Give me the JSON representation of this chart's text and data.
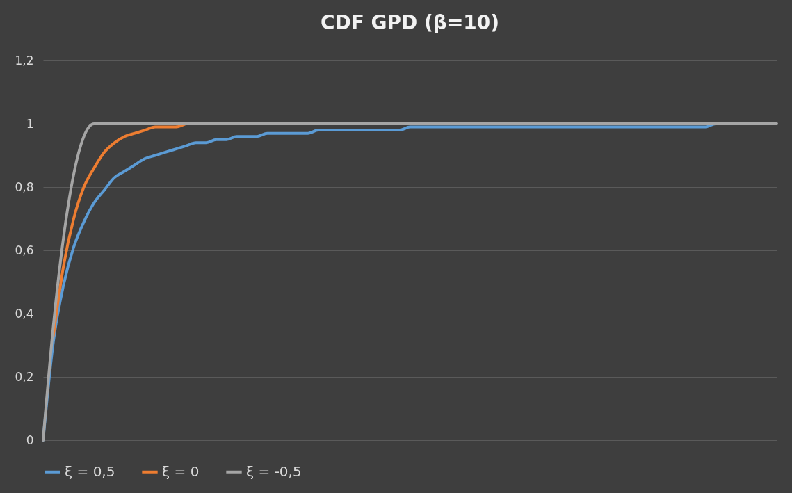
{
  "chart_data": {
    "type": "line",
    "title": "CDF GPD (β=10)",
    "categories": [
      null,
      null,
      null,
      null,
      null,
      null,
      null,
      null,
      null,
      null,
      null,
      null,
      null,
      null,
      null,
      null,
      null,
      null,
      null,
      null,
      null,
      null,
      null,
      null,
      null,
      null,
      null,
      null,
      null,
      null,
      null,
      null,
      null,
      null,
      null,
      null,
      null,
      null,
      null,
      null,
      null,
      null,
      null,
      null,
      null,
      null,
      null,
      null,
      null,
      null,
      null,
      null,
      null,
      null,
      null,
      null,
      null,
      null,
      null,
      null,
      null,
      null,
      null,
      null,
      null,
      null,
      null,
      null,
      null,
      null,
      null,
      null,
      null
    ],
    "series": [
      {
        "name": "ξ = 0,5",
        "color": "#5b9bd5",
        "values": [
          0,
          0.31,
          0.49,
          0.61,
          0.69,
          0.75,
          0.79,
          0.83,
          0.85,
          0.87,
          0.89,
          0.9,
          0.91,
          0.92,
          0.93,
          0.94,
          0.94,
          0.95,
          0.95,
          0.96,
          0.96,
          0.96,
          0.97,
          0.97,
          0.97,
          0.97,
          0.97,
          0.98,
          0.98,
          0.98,
          0.98,
          0.98,
          0.98,
          0.98,
          0.98,
          0.98,
          0.99,
          0.99,
          0.99,
          0.99,
          0.99,
          0.99,
          0.99,
          0.99,
          0.99,
          0.99,
          0.99,
          0.99,
          0.99,
          0.99,
          0.99,
          0.99,
          0.99,
          0.99,
          0.99,
          0.99,
          0.99,
          0.99,
          0.99,
          0.99,
          0.99,
          0.99,
          0.99,
          0.99,
          0.99,
          0.99,
          1,
          1,
          null,
          null,
          null,
          null,
          null
        ]
      },
      {
        "name": "ξ = 0",
        "color": "#ed7d31",
        "values": [
          null,
          0.33,
          0.55,
          0.7,
          0.8,
          0.86,
          0.91,
          0.94,
          0.96,
          0.97,
          0.98,
          0.99,
          0.99,
          0.99,
          1,
          null,
          null,
          null,
          null,
          null,
          null,
          null,
          null,
          null,
          null,
          null,
          null,
          null,
          null,
          null,
          null,
          null,
          null,
          null,
          null,
          null,
          null,
          null,
          null,
          null,
          null,
          null,
          null,
          null,
          null,
          null,
          null,
          null,
          null,
          null,
          null,
          null,
          null,
          null,
          null,
          null,
          null,
          null,
          null,
          null,
          null,
          null,
          null,
          null,
          null,
          null,
          null,
          null,
          null,
          null,
          null,
          null,
          null
        ]
      },
      {
        "name": "ξ = -0,5",
        "color": "#a5a5a5",
        "values": [
          0,
          0.36,
          0.64,
          0.84,
          0.96,
          1,
          1,
          1,
          1,
          1,
          1,
          1,
          1,
          1,
          1,
          1,
          1,
          1,
          1,
          1,
          1,
          1,
          1,
          1,
          1,
          1,
          1,
          1,
          1,
          1,
          1,
          1,
          1,
          1,
          1,
          1,
          1,
          1,
          1,
          1,
          1,
          1,
          1,
          1,
          1,
          1,
          1,
          1,
          1,
          1,
          1,
          1,
          1,
          1,
          1,
          1,
          1,
          1,
          1,
          1,
          1,
          1,
          1,
          1,
          1,
          1,
          1,
          1,
          1,
          1,
          1,
          1,
          1
        ]
      }
    ],
    "ylim": [
      0,
      1.2
    ],
    "yticks": [
      0,
      {
        "value": 0.2,
        "label": "0,2"
      },
      {
        "value": 0.4,
        "label": "0,4"
      },
      {
        "value": 0.6,
        "label": "0,6"
      },
      {
        "value": 0.8,
        "label": "0,8"
      },
      1,
      {
        "value": 1.2,
        "label": "1,2"
      }
    ],
    "grid": "y",
    "legend": "bottom",
    "tick_labels": "y",
    "marker": "none",
    "line_style": "solid"
  }
}
